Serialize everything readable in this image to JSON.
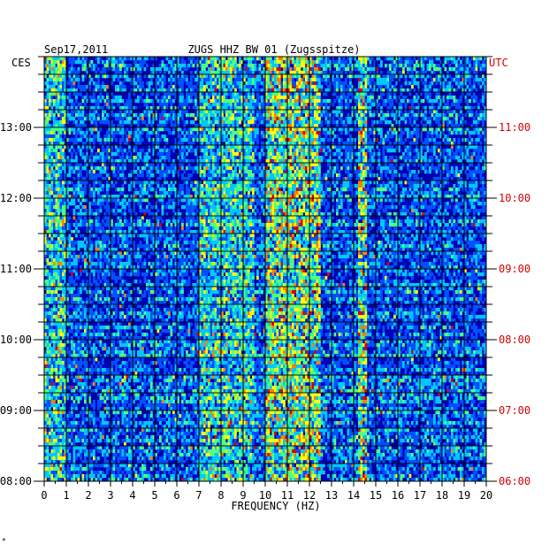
{
  "chart_data": {
    "type": "heatmap",
    "title_left": "Sep17,2011",
    "title_center": "ZUGS HHZ BW 01 (Zugsspitze)",
    "xlabel": "FREQUENCY (HZ)",
    "left_axis_label": "CES",
    "right_axis_label": "UTC",
    "xlim": [
      0,
      20
    ],
    "x_ticks": [
      "0",
      "1",
      "2",
      "3",
      "4",
      "5",
      "6",
      "7",
      "8",
      "9",
      "10",
      "11",
      "12",
      "13",
      "14",
      "15",
      "16",
      "17",
      "18",
      "19",
      "20"
    ],
    "y_range_hours": [
      8,
      14
    ],
    "left_time_ticks": [
      {
        "hour": 8,
        "label": "08:00"
      },
      {
        "hour": 9,
        "label": "09:00"
      },
      {
        "hour": 10,
        "label": "10:00"
      },
      {
        "hour": 11,
        "label": "11:00"
      },
      {
        "hour": 12,
        "label": "12:00"
      },
      {
        "hour": 13,
        "label": "13:00"
      }
    ],
    "right_time_ticks": [
      {
        "hour": 8,
        "label": "06:00"
      },
      {
        "hour": 9,
        "label": "07:00"
      },
      {
        "hour": 10,
        "label": "08:00"
      },
      {
        "hour": 11,
        "label": "09:00"
      },
      {
        "hour": 12,
        "label": "10:00"
      },
      {
        "hour": 13,
        "label": "11:00"
      }
    ],
    "grid": true,
    "colormap": [
      "#0000b4",
      "#0050ff",
      "#00c8ff",
      "#50ff80",
      "#ffff00",
      "#ff8000",
      "#d40000"
    ],
    "energy_bands_hz": [
      {
        "range": [
          10,
          12.5
        ],
        "level": "high"
      },
      {
        "range": [
          7,
          9.5
        ],
        "level": "medium"
      },
      {
        "range": [
          0,
          1
        ],
        "level": "medium"
      },
      {
        "range": [
          14.2,
          14.6
        ],
        "level": "high"
      }
    ]
  },
  "footer_mark": "*"
}
